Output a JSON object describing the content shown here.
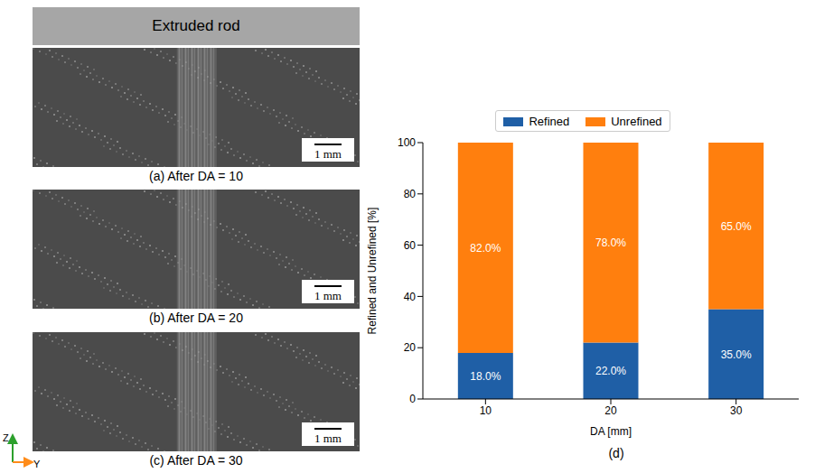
{
  "panels": {
    "header": "Extruded rod",
    "images": [
      {
        "caption": "(a) After DA = 10",
        "scale_bar": "1 mm"
      },
      {
        "caption": "(b) After DA = 20",
        "scale_bar": "1 mm"
      },
      {
        "caption": "(c) After DA = 30",
        "scale_bar": "1 mm"
      }
    ],
    "axis_labels": {
      "vertical": "Z",
      "horizontal": "Y"
    },
    "chart_caption": "(d)"
  },
  "chart_data": {
    "type": "bar",
    "stacked": true,
    "categories": [
      "10",
      "20",
      "30"
    ],
    "series": [
      {
        "name": "Refined",
        "color": "#1f5fa6",
        "values": [
          18,
          22,
          35
        ],
        "value_labels": [
          "18.0%",
          "22.0%",
          "35.0%"
        ]
      },
      {
        "name": "Unrefined",
        "color": "#ff7f0e",
        "values": [
          82,
          78,
          65
        ],
        "value_labels": [
          "82.0%",
          "78.0%",
          "65.0%"
        ]
      }
    ],
    "xlabel": "DA [mm]",
    "ylabel": "Refined and Unrefined [%]",
    "ylim": [
      0,
      100
    ],
    "yticks": [
      0,
      20,
      40,
      60,
      80,
      100
    ],
    "legend": "top",
    "data_labels": true,
    "grid": false
  }
}
